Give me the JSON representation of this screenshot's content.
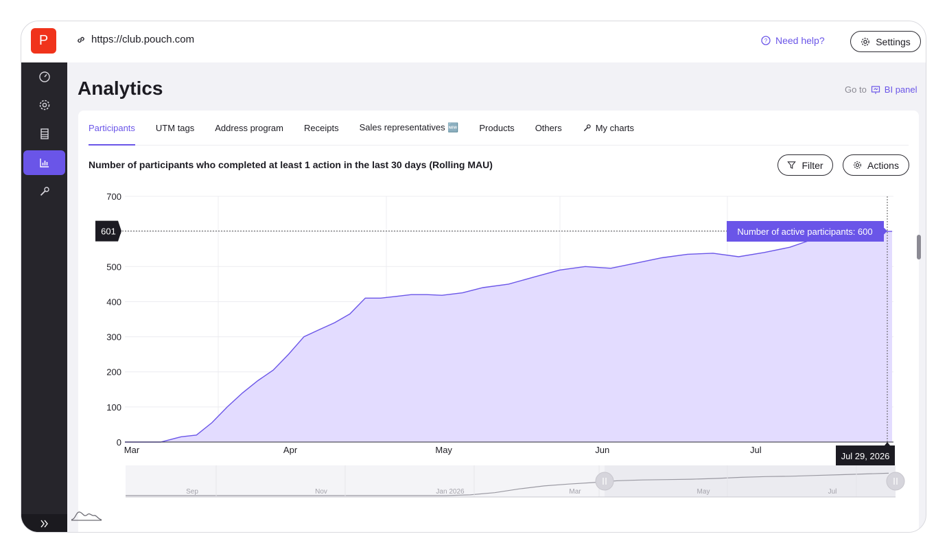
{
  "browser": {
    "url": "https://club.pouch.com"
  },
  "app": {
    "logo_letter": "P"
  },
  "header": {
    "help_label": "Need help?",
    "settings_label": "Settings"
  },
  "sidebar": {
    "items": [
      {
        "icon": "dashboard-icon"
      },
      {
        "icon": "gear-icon"
      },
      {
        "icon": "list-icon"
      },
      {
        "icon": "bar-chart-icon",
        "active": true
      },
      {
        "icon": "wrench-icon"
      }
    ],
    "expand_icon": "double-chevron-right-icon"
  },
  "page": {
    "title": "Analytics",
    "goto_prefix": "Go to",
    "bi_label": "BI panel"
  },
  "tabs": [
    {
      "label": "Participants",
      "active": true
    },
    {
      "label": "UTM tags"
    },
    {
      "label": "Address program"
    },
    {
      "label": "Receipts"
    },
    {
      "label": "Sales representatives 🆕"
    },
    {
      "label": "Products"
    },
    {
      "label": "Others"
    },
    {
      "label": "My charts",
      "icon": "wrench-icon"
    }
  ],
  "chart_header": {
    "title": "Number of participants who completed at least 1 action in the last 30 days (Rolling MAU)",
    "filter_label": "Filter",
    "actions_label": "Actions"
  },
  "chart_data": {
    "type": "area",
    "ylim": [
      0,
      700
    ],
    "yticks": [
      "0",
      "100",
      "200",
      "300",
      "400",
      "500",
      "600",
      "700"
    ],
    "xtick_labels": [
      "Mar",
      "Apr",
      "May",
      "Jun",
      "Jul"
    ],
    "x": [
      "Mar 1",
      "Mar 8",
      "Mar 12",
      "Mar 15",
      "Mar 18",
      "Mar 21",
      "Mar 24",
      "Mar 27",
      "Mar 30",
      "Apr 2",
      "Apr 5",
      "Apr 8",
      "Apr 11",
      "Apr 14",
      "Apr 17",
      "Apr 20",
      "Apr 23",
      "Apr 26",
      "Apr 29",
      "May 2",
      "May 6",
      "May 10",
      "May 15",
      "May 20",
      "May 25",
      "May 30",
      "Jun 4",
      "Jun 9",
      "Jun 14",
      "Jun 19",
      "Jun 24",
      "Jun 29",
      "Jul 4",
      "Jul 9",
      "Jul 14",
      "Jul 19",
      "Jul 24",
      "Jul 29"
    ],
    "values": [
      0,
      0,
      15,
      20,
      55,
      100,
      140,
      175,
      205,
      250,
      300,
      320,
      340,
      365,
      410,
      410,
      415,
      420,
      420,
      418,
      425,
      440,
      450,
      470,
      490,
      500,
      495,
      510,
      525,
      535,
      538,
      528,
      540,
      555,
      580,
      595,
      600,
      600
    ],
    "crosshair": {
      "y_label": "601",
      "x_label": "Jul 29, 2026"
    },
    "tooltip": "Number of active participants: 600",
    "series_color": "#6a55e8",
    "fill_color": "#e3dcff",
    "grid": true
  },
  "navigator": {
    "labels": [
      "Sep",
      "Nov",
      "Jan 2026",
      "Mar",
      "May",
      "Jul"
    ],
    "values": [
      0,
      0,
      0,
      0,
      0,
      0,
      0,
      0,
      0,
      0,
      0,
      0,
      0,
      0,
      20,
      80,
      180,
      260,
      310,
      350,
      400,
      420,
      430,
      440,
      460,
      490,
      510,
      520,
      540,
      560,
      580,
      600
    ]
  }
}
